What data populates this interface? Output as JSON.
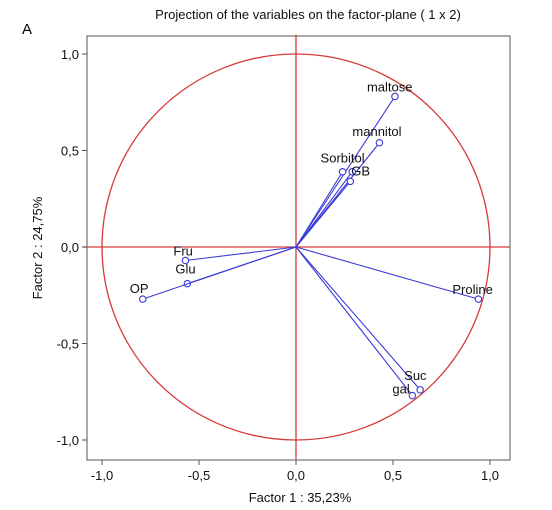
{
  "panel_label": "A",
  "colors": {
    "circle": "#d63a3a",
    "axes_cross": "#d63a3a",
    "vectors": "#3a3ad6",
    "frame": "#555555",
    "text": "#111111"
  },
  "chart_data": {
    "type": "scatter",
    "title": "Projection of the variables on the factor-plane (  1 x   2)",
    "xlabel": "Factor 1 : 35,23%",
    "ylabel": "Factor 2 : 24,75%",
    "xlim": [
      -1.1,
      1.1
    ],
    "ylim": [
      -1.1,
      1.1
    ],
    "xticks": [
      -1.0,
      -0.5,
      0.0,
      0.5,
      1.0
    ],
    "yticks": [
      -1.0,
      -0.5,
      0.0,
      0.5,
      1.0
    ],
    "xtick_labels": [
      "-1,0",
      "-0,5",
      "0,0",
      "0,5",
      "1,0"
    ],
    "ytick_labels": [
      "-1,0",
      "-0,5",
      "0,0",
      "0,5",
      "1,0"
    ],
    "unit_circle": true,
    "grid": false,
    "points": [
      {
        "label": "maltose",
        "x": 0.51,
        "y": 0.78
      },
      {
        "label": "mannitol",
        "x": 0.43,
        "y": 0.54
      },
      {
        "label": "Sorbitol",
        "x": 0.24,
        "y": 0.39
      },
      {
        "label": "GB",
        "x": 0.29,
        "y": 0.39
      },
      {
        "label": "",
        "x": 0.28,
        "y": 0.34
      },
      {
        "label": "Fru",
        "x": -0.57,
        "y": -0.07
      },
      {
        "label": "Glu",
        "x": -0.56,
        "y": -0.19
      },
      {
        "label": "OP",
        "x": -0.79,
        "y": -0.27
      },
      {
        "label": "Proline",
        "x": 0.94,
        "y": -0.27
      },
      {
        "label": "Suc",
        "x": 0.64,
        "y": -0.74
      },
      {
        "label": "gal",
        "x": 0.6,
        "y": -0.77
      }
    ]
  }
}
